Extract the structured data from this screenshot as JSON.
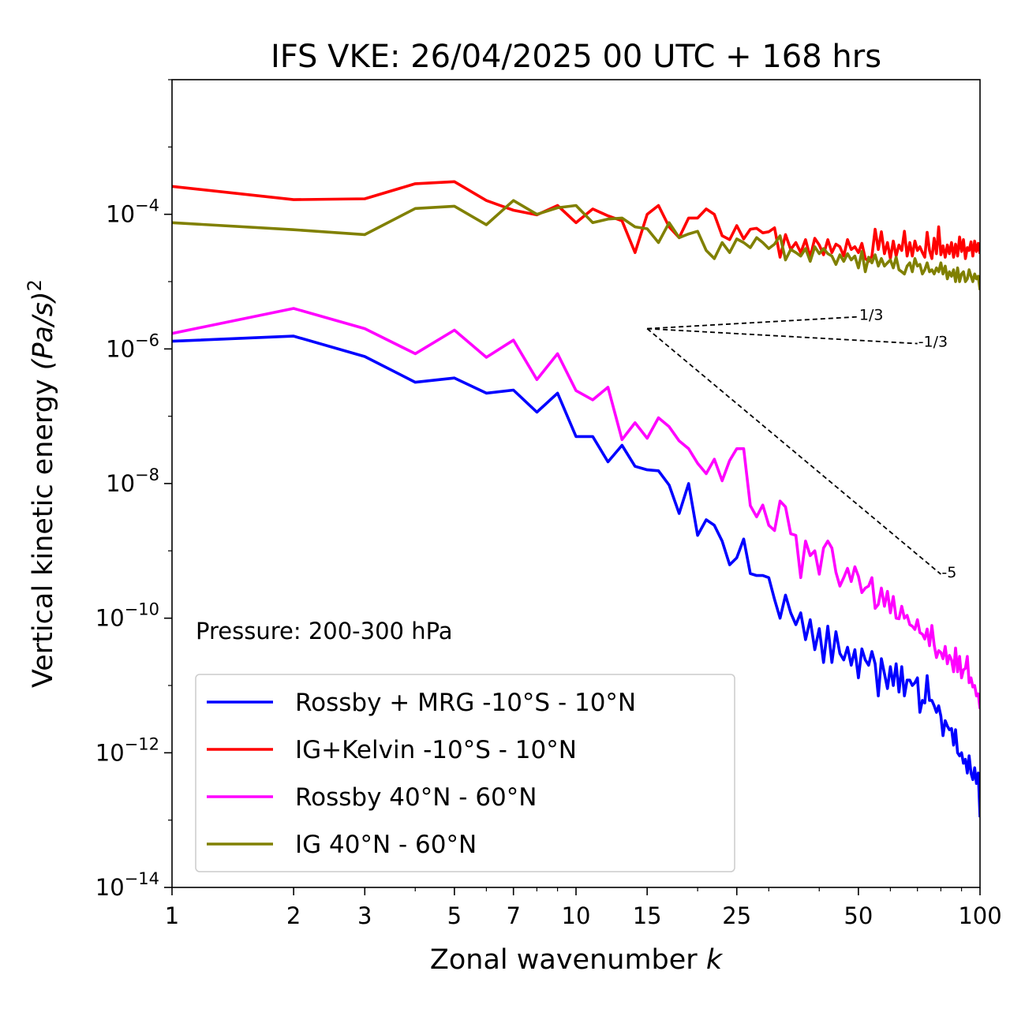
{
  "chart_data": {
    "type": "line",
    "title": "IFS VKE: 26/04/2025 00 UTC + 168 hrs",
    "xlabel": "Zonal wavenumber",
    "xlabel_var": "k",
    "ylabel": "Vertical kinetic energy",
    "ylabel_unit": "(Pa/s)",
    "ylabel_power": "2",
    "xscale": "log",
    "yscale": "log",
    "xlim": [
      1,
      100
    ],
    "ylim": [
      1e-14,
      0.01
    ],
    "xticks": [
      {
        "value": 1,
        "label": "1"
      },
      {
        "value": 2,
        "label": "2"
      },
      {
        "value": 3,
        "label": "3"
      },
      {
        "value": 5,
        "label": "5"
      },
      {
        "value": 7,
        "label": "7"
      },
      {
        "value": 10,
        "label": "10"
      },
      {
        "value": 15,
        "label": "15"
      },
      {
        "value": 25,
        "label": "25"
      },
      {
        "value": 50,
        "label": "50"
      },
      {
        "value": 100,
        "label": "100"
      }
    ],
    "yticks": [
      {
        "exp": -4,
        "base": "10",
        "power": "−4"
      },
      {
        "exp": -6,
        "base": "10",
        "power": "−6"
      },
      {
        "exp": -8,
        "base": "10",
        "power": "−8"
      },
      {
        "exp": -10,
        "base": "10",
        "power": "−10"
      },
      {
        "exp": -12,
        "base": "10",
        "power": "−12"
      },
      {
        "exp": -14,
        "base": "10",
        "power": "−14"
      }
    ],
    "annotation": "Pressure: 200-300 hPa",
    "legend_position": "lower-left",
    "slope_lines": [
      {
        "label": "1/3",
        "x": [
          15,
          50
        ],
        "y": [
          2e-06,
          3e-06
        ]
      },
      {
        "label": "-1/3",
        "x": [
          15,
          70
        ],
        "y": [
          2e-06,
          1.2e-06
        ]
      },
      {
        "label": "-5",
        "x": [
          15,
          80
        ],
        "y": [
          2e-06,
          4.5e-10
        ]
      }
    ],
    "series": [
      {
        "name": "Rossby + MRG -10°S - 10°N",
        "color": "#0000ff",
        "x": [
          1,
          2,
          3,
          4,
          5,
          6,
          7,
          8,
          9,
          10,
          11,
          12,
          13,
          14,
          15,
          16,
          17,
          18,
          19,
          20,
          21,
          22,
          23,
          24,
          25,
          26,
          27,
          28,
          29,
          30,
          31,
          32,
          33,
          34,
          35,
          36,
          37,
          38,
          39,
          40,
          41,
          42,
          43,
          44,
          45,
          46,
          47,
          48,
          49,
          50,
          51,
          52,
          53,
          54,
          55,
          56,
          57,
          58,
          59,
          60,
          61,
          62,
          63,
          64,
          65,
          66,
          67,
          68,
          69,
          70,
          71,
          72,
          73,
          74,
          75,
          76,
          77,
          78,
          79,
          80,
          81,
          82,
          83,
          84,
          85,
          86,
          87,
          88,
          89,
          90,
          91,
          92,
          93,
          94,
          95,
          96,
          97,
          98,
          99,
          100
        ],
        "y": [
          1.3e-06,
          1.55e-06,
          7.7e-07,
          3.2e-07,
          3.7e-07,
          2.2e-07,
          2.45e-07,
          1.15e-07,
          2.2e-07,
          5e-08,
          5e-08,
          2.1e-08,
          3.7e-08,
          1.8e-08,
          1.6e-08,
          1.55e-08,
          9.5e-09,
          3.6e-09,
          1e-08,
          1.7e-09,
          2.9e-09,
          2.4e-09,
          1.4e-09,
          6.2e-10,
          7.9e-10,
          1.5e-09,
          4.6e-10,
          4.3e-10,
          4.3e-10,
          4e-10,
          1.9e-10,
          1e-10,
          2.2e-10,
          1.2e-10,
          8e-11,
          1.2e-10,
          4.8e-11,
          9.5e-11,
          3.4e-11,
          7e-11,
          2.2e-11,
          7.6e-11,
          2.2e-11,
          6.3e-11,
          3e-11,
          2.4e-11,
          3.7e-11,
          2e-11,
          3.4e-11,
          1.3e-11,
          3.5e-11,
          2.4e-11,
          2e-11,
          3.2e-11,
          2.1e-11,
          7e-12,
          2.5e-11,
          1.5e-11,
          9e-12,
          1.9e-11,
          1e-11,
          2.1e-11,
          8e-12,
          1.9e-11,
          7e-12,
          1.2e-11,
          1.2e-11,
          1e-11,
          1.1e-11,
          1.3e-11,
          4e-12,
          6e-12,
          5.5e-12,
          1.4e-11,
          6e-12,
          6e-12,
          5e-12,
          4e-12,
          5e-12,
          3.5e-12,
          1.8e-12,
          3e-12,
          2.5e-12,
          2.2e-12,
          2.3e-12,
          1.3e-12,
          2.2e-12,
          1e-12,
          9e-13,
          1e-12,
          7e-13,
          8e-13,
          5e-13,
          9e-13,
          5e-13,
          4e-13,
          6e-13,
          3.5e-13,
          5e-13,
          1.1e-13
        ]
      },
      {
        "name": "IG+Kelvin -10°S - 10°N",
        "color": "#ff0000",
        "x": [
          1,
          2,
          3,
          4,
          5,
          6,
          7,
          8,
          9,
          10,
          11,
          12,
          13,
          14,
          15,
          16,
          17,
          18,
          19,
          20,
          21,
          22,
          23,
          24,
          25,
          26,
          27,
          28,
          29,
          30,
          31,
          32,
          33,
          34,
          35,
          36,
          37,
          38,
          39,
          40,
          41,
          42,
          43,
          44,
          45,
          46,
          47,
          48,
          49,
          50,
          51,
          52,
          53,
          54,
          55,
          56,
          57,
          58,
          59,
          60,
          61,
          62,
          63,
          64,
          65,
          66,
          67,
          68,
          69,
          70,
          71,
          72,
          73,
          74,
          75,
          76,
          77,
          78,
          79,
          80,
          81,
          82,
          83,
          84,
          85,
          86,
          87,
          88,
          89,
          90,
          91,
          92,
          93,
          94,
          95,
          96,
          97,
          98,
          99,
          100
        ],
        "y": [
          0.00026,
          0.000165,
          0.00017,
          0.000285,
          0.000305,
          0.00016,
          0.000115,
          9.8e-05,
          0.000135,
          7.5e-05,
          0.00012,
          9.5e-05,
          8e-05,
          2.7e-05,
          0.0001,
          0.000135,
          6.5e-05,
          4.5e-05,
          8.8e-05,
          8.8e-05,
          0.00012,
          0.0001,
          4.8e-05,
          4.2e-05,
          6.8e-05,
          4.3e-05,
          6e-05,
          6.2e-05,
          5.3e-05,
          5.5e-05,
          6.3e-05,
          2.3e-05,
          5e-05,
          3e-05,
          3.8e-05,
          2.7e-05,
          4.2e-05,
          2.3e-05,
          4.4e-05,
          3.5e-05,
          2.5e-05,
          4.2e-05,
          2.7e-05,
          3.6e-05,
          3.3e-05,
          2.4e-05,
          4.2e-05,
          3e-05,
          3.3e-05,
          2.7e-05,
          3.7e-05,
          2.2e-05,
          2e-05,
          2.4e-05,
          6e-05,
          3e-05,
          5.5e-05,
          2.6e-05,
          3.8e-05,
          2.2e-05,
          4e-05,
          2.4e-05,
          3.5e-05,
          2.9e-05,
          5.6e-05,
          2.4e-05,
          3.8e-05,
          2.4e-05,
          4e-05,
          2.9e-05,
          3.3e-05,
          2.7e-05,
          2.3e-05,
          5.4e-05,
          2.9e-05,
          2.2e-05,
          4.4e-05,
          2.6e-05,
          6.5e-05,
          2.5e-05,
          3.4e-05,
          2.3e-05,
          3.5e-05,
          2.6e-05,
          3.8e-05,
          2.3e-05,
          3.6e-05,
          2.4e-05,
          4.6e-05,
          2.8e-05,
          4.2e-05,
          2.2e-05,
          3.2e-05,
          2.9e-05,
          3.9e-05,
          2.4e-05,
          4e-05,
          2.8e-05,
          3.7e-05,
          2.6e-05
        ]
      },
      {
        "name": "Rossby 40°N - 60°N",
        "color": "#ff00ff",
        "x": [
          1,
          2,
          3,
          4,
          5,
          6,
          7,
          8,
          9,
          10,
          11,
          12,
          13,
          14,
          15,
          16,
          17,
          18,
          19,
          20,
          21,
          22,
          23,
          24,
          25,
          26,
          27,
          28,
          29,
          30,
          31,
          32,
          33,
          34,
          35,
          36,
          37,
          38,
          39,
          40,
          41,
          42,
          43,
          44,
          45,
          46,
          47,
          48,
          49,
          50,
          51,
          52,
          53,
          54,
          55,
          56,
          57,
          58,
          59,
          60,
          61,
          62,
          63,
          64,
          65,
          66,
          67,
          68,
          69,
          70,
          71,
          72,
          73,
          74,
          75,
          76,
          77,
          78,
          79,
          80,
          81,
          82,
          83,
          84,
          85,
          86,
          87,
          88,
          89,
          90,
          91,
          92,
          93,
          94,
          95,
          96,
          97,
          98,
          99,
          100
        ],
        "y": [
          1.7e-06,
          4e-06,
          2e-06,
          8.5e-07,
          1.9e-06,
          7.5e-07,
          1.35e-06,
          3.5e-07,
          8.5e-07,
          2.4e-07,
          1.75e-07,
          2.7e-07,
          4.5e-08,
          8e-08,
          4.7e-08,
          9.5e-08,
          7e-08,
          4.3e-08,
          3.3e-08,
          2e-08,
          1.4e-08,
          2.3e-08,
          1.1e-08,
          2.2e-08,
          3.3e-08,
          3.3e-08,
          4.7e-09,
          3.2e-09,
          4.8e-09,
          2.4e-09,
          2e-09,
          5.5e-09,
          4.5e-09,
          1.8e-09,
          1.7e-09,
          4e-10,
          1.4e-09,
          8.5e-10,
          1e-09,
          4.5e-10,
          1.1e-09,
          1.4e-09,
          1.1e-09,
          4.8e-10,
          3e-10,
          4e-10,
          5.5e-10,
          3.5e-10,
          5.8e-10,
          4.2e-10,
          2.4e-10,
          2.8e-10,
          3e-10,
          4e-10,
          1.4e-10,
          1.6e-10,
          2.8e-10,
          1.5e-10,
          2.5e-10,
          1.2e-10,
          2.1e-10,
          1e-10,
          9.8e-11,
          1.5e-10,
          1e-10,
          1.1e-10,
          8e-11,
          7.6e-11,
          6.8e-11,
          9.5e-11,
          6.1e-11,
          5.8e-11,
          4.9e-11,
          6.9e-11,
          3.9e-11,
          7.8e-11,
          4e-11,
          2.6e-11,
          3.3e-11,
          3.1e-11,
          2.5e-11,
          3.8e-11,
          2.1e-11,
          2.8e-11,
          2.4e-11,
          1.6e-11,
          3.6e-11,
          1.6e-11,
          2.7e-11,
          1.3e-11,
          1.7e-11,
          1.8e-11,
          2.7e-11,
          1.1e-11,
          1.3e-11,
          9.5e-12,
          1e-11,
          7e-12,
          7.5e-12,
          4.5e-12
        ]
      },
      {
        "name": "IG 40°N - 60°N",
        "color": "#808000",
        "x": [
          1,
          2,
          3,
          4,
          5,
          6,
          7,
          8,
          9,
          10,
          11,
          12,
          13,
          14,
          15,
          16,
          17,
          18,
          19,
          20,
          21,
          22,
          23,
          24,
          25,
          26,
          27,
          28,
          29,
          30,
          31,
          32,
          33,
          34,
          35,
          36,
          37,
          38,
          39,
          40,
          41,
          42,
          43,
          44,
          45,
          46,
          47,
          48,
          49,
          50,
          51,
          52,
          53,
          54,
          55,
          56,
          57,
          58,
          59,
          60,
          61,
          62,
          63,
          64,
          65,
          66,
          67,
          68,
          69,
          70,
          71,
          72,
          73,
          74,
          75,
          76,
          77,
          78,
          79,
          80,
          81,
          82,
          83,
          84,
          85,
          86,
          87,
          88,
          89,
          90,
          91,
          92,
          93,
          94,
          95,
          96,
          97,
          98,
          99,
          100
        ],
        "y": [
          7.5e-05,
          5.9e-05,
          5e-05,
          0.000122,
          0.000132,
          7e-05,
          0.00016,
          0.0001,
          0.000125,
          0.000135,
          7.5e-05,
          8.5e-05,
          8.8e-05,
          6.5e-05,
          6.1e-05,
          3.8e-05,
          7.5e-05,
          4.5e-05,
          5.1e-05,
          5.6e-05,
          2.9e-05,
          2.2e-05,
          3.8e-05,
          2.7e-05,
          4.3e-05,
          3.8e-05,
          3.2e-05,
          4.5e-05,
          3.8e-05,
          3.1e-05,
          3.6e-05,
          4.8e-05,
          2.1e-05,
          3e-05,
          2.7e-05,
          2.4e-05,
          3.1e-05,
          2e-05,
          3.3e-05,
          2.6e-05,
          3.1e-05,
          2.6e-05,
          2.4e-05,
          1.8e-05,
          2.5e-05,
          2e-05,
          2.6e-05,
          2.1e-05,
          2.4e-05,
          1.6e-05,
          2.8e-05,
          1.4e-05,
          2.3e-05,
          1.9e-05,
          2.5e-05,
          1.7e-05,
          2.2e-05,
          1.7e-05,
          1.9e-05,
          2.1e-05,
          1.6e-05,
          2.3e-05,
          1.5e-05,
          1.4e-05,
          1.3e-05,
          1.7e-05,
          1.9e-05,
          1.4e-05,
          2.2e-05,
          1.7e-05,
          1.8e-05,
          1.3e-05,
          1.5e-05,
          1.9e-05,
          1.4e-05,
          1.5e-05,
          1.3e-05,
          1.6e-05,
          1.4e-05,
          1.9e-05,
          1.3e-05,
          1.7e-05,
          1.1e-05,
          1.4e-05,
          1.2e-05,
          1.5e-05,
          1e-05,
          1.6e-05,
          1e-05,
          1.3e-05,
          1.4e-05,
          1e-05,
          1.1e-05,
          1.5e-05,
          1.2e-05,
          1e-05,
          1.3e-05,
          1.1e-05,
          1.2e-05,
          7.5e-06
        ]
      }
    ]
  }
}
